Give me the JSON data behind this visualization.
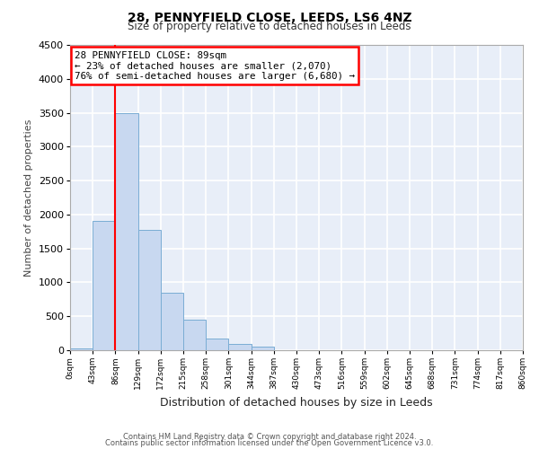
{
  "title": "28, PENNYFIELD CLOSE, LEEDS, LS6 4NZ",
  "subtitle": "Size of property relative to detached houses in Leeds",
  "xlabel": "Distribution of detached houses by size in Leeds",
  "ylabel": "Number of detached properties",
  "bar_values": [
    30,
    1900,
    3500,
    1775,
    850,
    450,
    175,
    90,
    50,
    0,
    0,
    0,
    0,
    0,
    0,
    0,
    0,
    0,
    0,
    0
  ],
  "bin_edges": [
    0,
    43,
    86,
    129,
    172,
    215,
    258,
    301,
    344,
    387,
    430,
    473,
    516,
    559,
    602,
    645,
    688,
    731,
    774,
    817,
    860
  ],
  "tick_labels": [
    "0sqm",
    "43sqm",
    "86sqm",
    "129sqm",
    "172sqm",
    "215sqm",
    "258sqm",
    "301sqm",
    "344sqm",
    "387sqm",
    "430sqm",
    "473sqm",
    "516sqm",
    "559sqm",
    "602sqm",
    "645sqm",
    "688sqm",
    "731sqm",
    "774sqm",
    "817sqm",
    "860sqm"
  ],
  "bar_color": "#c8d8f0",
  "bar_edge_color": "#7aadd4",
  "bg_color": "#e8eef8",
  "grid_color": "#ffffff",
  "red_line_x": 86,
  "ylim": [
    0,
    4500
  ],
  "yticks": [
    0,
    500,
    1000,
    1500,
    2000,
    2500,
    3000,
    3500,
    4000,
    4500
  ],
  "annotation_title": "28 PENNYFIELD CLOSE: 89sqm",
  "annotation_line1": "← 23% of detached houses are smaller (2,070)",
  "annotation_line2": "76% of semi-detached houses are larger (6,680) →",
  "footer1": "Contains HM Land Registry data © Crown copyright and database right 2024.",
  "footer2": "Contains public sector information licensed under the Open Government Licence v3.0."
}
